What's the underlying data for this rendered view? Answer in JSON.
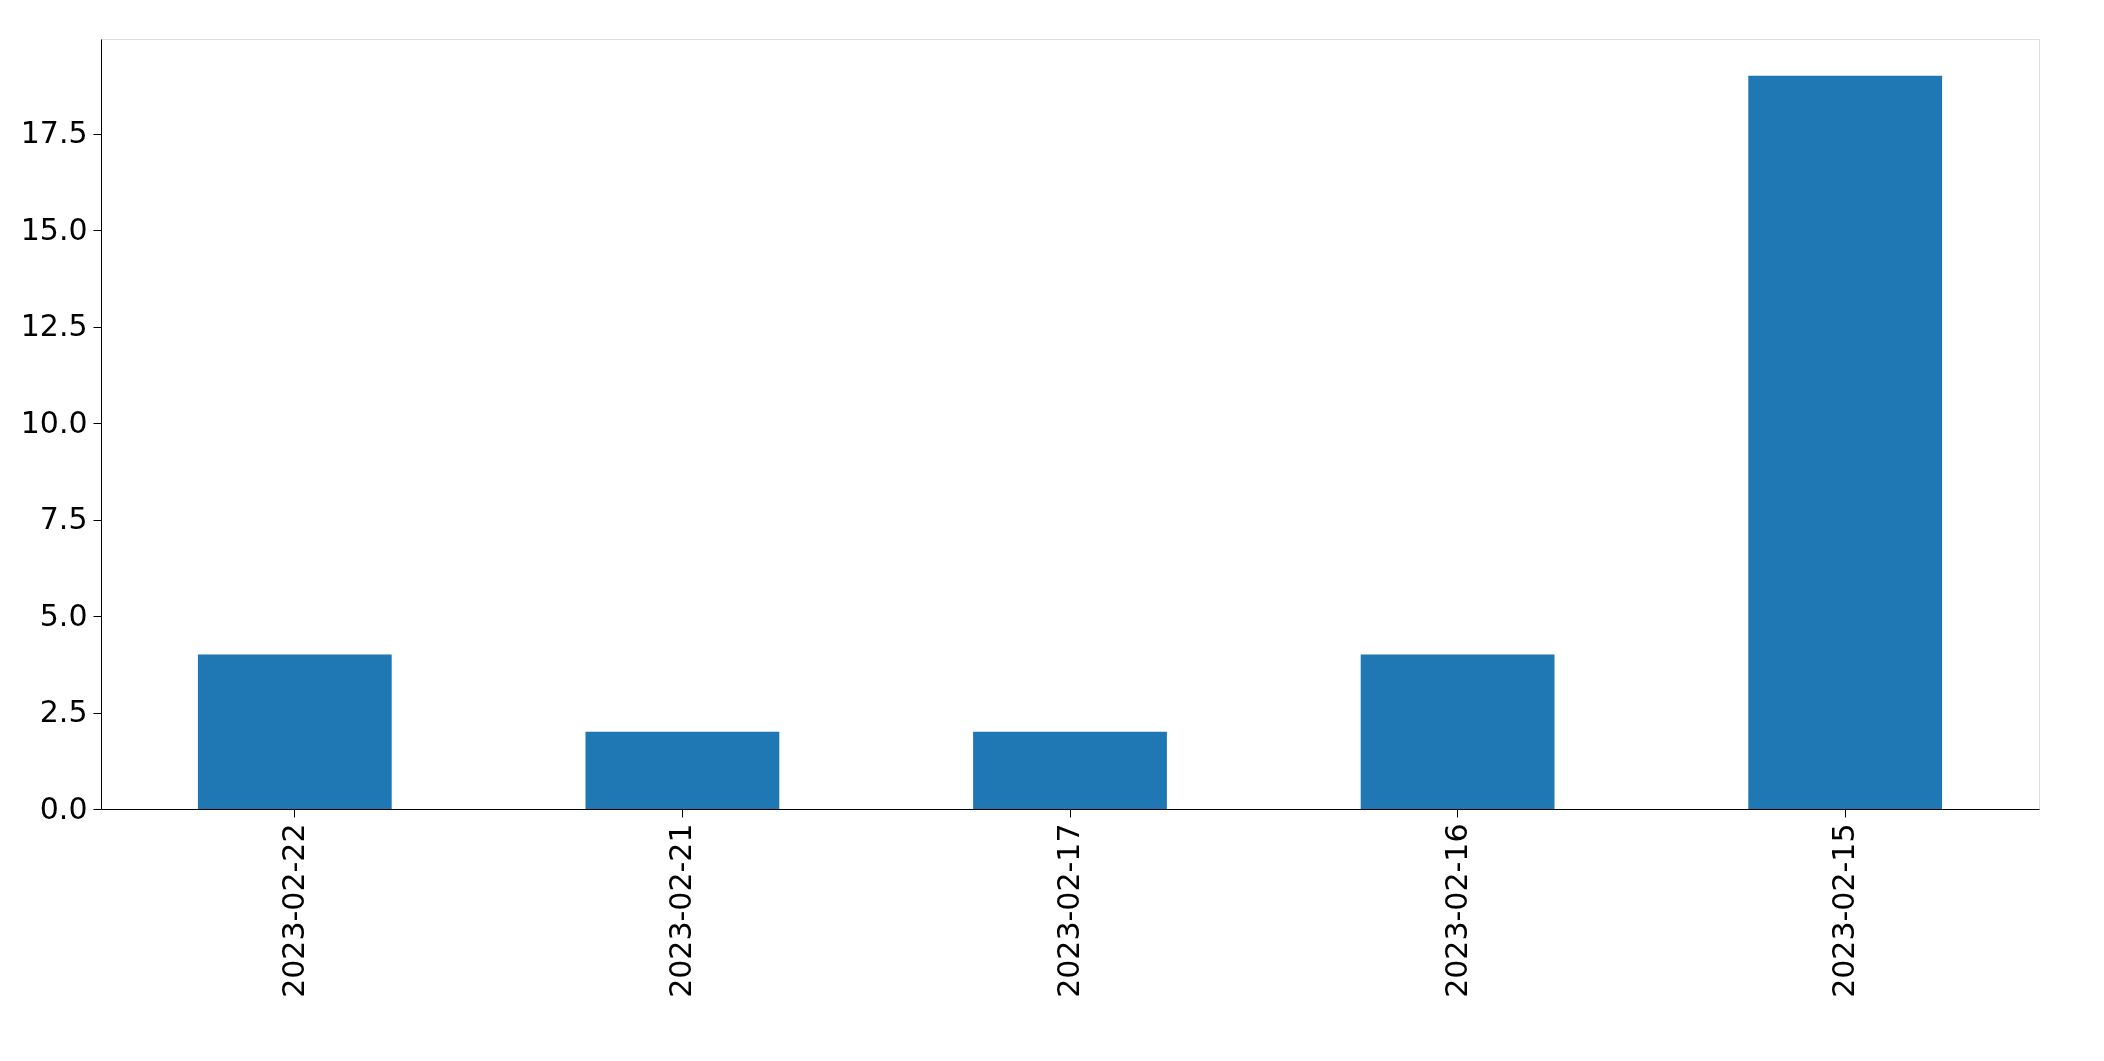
{
  "chart_data": {
    "type": "bar",
    "categories": [
      "2023-02-22",
      "2023-02-21",
      "2023-02-17",
      "2023-02-16",
      "2023-02-15"
    ],
    "values": [
      4,
      2,
      2,
      4,
      19
    ],
    "color": "#1f77b4",
    "ylim": [
      0,
      19.95
    ],
    "yticks": [
      {
        "value": 0,
        "label": "0.0"
      },
      {
        "value": 2.5,
        "label": "2.5"
      },
      {
        "value": 5,
        "label": "5.0"
      },
      {
        "value": 7.5,
        "label": "7.5"
      },
      {
        "value": 10,
        "label": "10.0"
      },
      {
        "value": 12.5,
        "label": "12.5"
      },
      {
        "value": 15,
        "label": "15.0"
      },
      {
        "value": 17.5,
        "label": "17.5"
      }
    ],
    "grid": false
  }
}
